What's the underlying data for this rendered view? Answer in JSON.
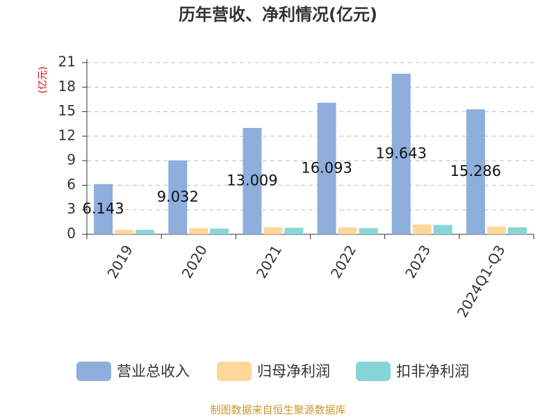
{
  "chart_data": {
    "type": "bar",
    "title": "历年营收、净利情况(亿元)",
    "y_label": "(亿元)",
    "source": "制图数据来自恒生聚源数据库",
    "categories": [
      "2019",
      "2020",
      "2021",
      "2022",
      "2023",
      "2024Q1-Q3"
    ],
    "series": [
      {
        "name": "营业总收入",
        "color": "#8eaedc",
        "values": [
          6.143,
          9.032,
          13.009,
          16.093,
          19.643,
          15.286
        ],
        "labels": true
      },
      {
        "name": "归母净利润",
        "color": "#fdd899",
        "values": [
          0.55,
          0.75,
          0.85,
          0.85,
          1.2,
          0.95
        ]
      },
      {
        "name": "扣非净利润",
        "color": "#88d5d8",
        "values": [
          0.55,
          0.7,
          0.8,
          0.75,
          1.15,
          0.85
        ]
      }
    ],
    "ylim": [
      0,
      21
    ],
    "yticks": [
      0,
      3,
      6,
      9,
      12,
      15,
      18,
      21
    ],
    "grid": true
  }
}
